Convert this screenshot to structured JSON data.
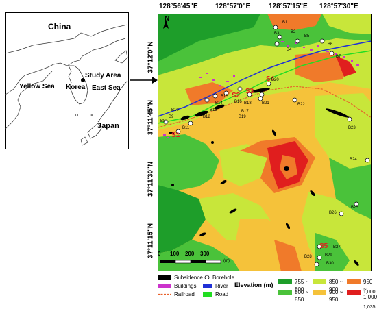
{
  "inset": {
    "labels": {
      "china": "China",
      "korea": "Korea",
      "yellow_sea": "Yellow Sea",
      "east_sea": "East Sea",
      "japan": "Japan",
      "study_area": "Study Area"
    }
  },
  "map": {
    "top_coords": [
      "128°56'45\"E",
      "128°57'0\"E",
      "128°57'15\"E",
      "128°57'30\"E"
    ],
    "left_coords": [
      "37°12'0\"N",
      "37°11'45\"N",
      "37°11'30\"N",
      "37°11'15\"N"
    ],
    "north_label": "N",
    "scale_ticks": [
      "0",
      "100",
      "200",
      "300"
    ],
    "scale_unit": "(m)",
    "sites": [
      "S1",
      "S2",
      "S3",
      "S4",
      "S5"
    ],
    "boreholes": [
      "B1",
      "B2",
      "B3",
      "B4",
      "B5",
      "B6",
      "B7",
      "B8",
      "B9",
      "B10",
      "B11",
      "B12",
      "B13",
      "B14",
      "B15",
      "B16",
      "B17",
      "B18",
      "B19",
      "B20",
      "B21",
      "B22",
      "B23",
      "B24",
      "B25",
      "B26",
      "B27",
      "B28",
      "B29",
      "B30"
    ],
    "colors": {
      "subsidence": "#000000",
      "buildings": "#cc33cc",
      "river": "#1f2fd6",
      "road": "#22dd22",
      "railroad": "#e8602a"
    }
  },
  "legend": {
    "subsidence": "Subsidence",
    "borehole": "Borehole",
    "buildings": "Buildings",
    "river": "River",
    "railroad": "Railroad",
    "road": "Road",
    "elevation_title": "Elevation (m)",
    "elevation_classes": [
      {
        "label": "755 ~ 800",
        "color": "#1e9e2a"
      },
      {
        "label": "850 ~ 900",
        "color": "#c8e63a"
      },
      {
        "label": "950 ~ 1,000",
        "color": "#f07a2a"
      },
      {
        "label": "800 ~ 850",
        "color": "#4ac23a"
      },
      {
        "label": "900 ~ 950",
        "color": "#f5c23a"
      },
      {
        "label": "1,000 ~ 1,035",
        "color": "#e01e1e"
      }
    ]
  }
}
